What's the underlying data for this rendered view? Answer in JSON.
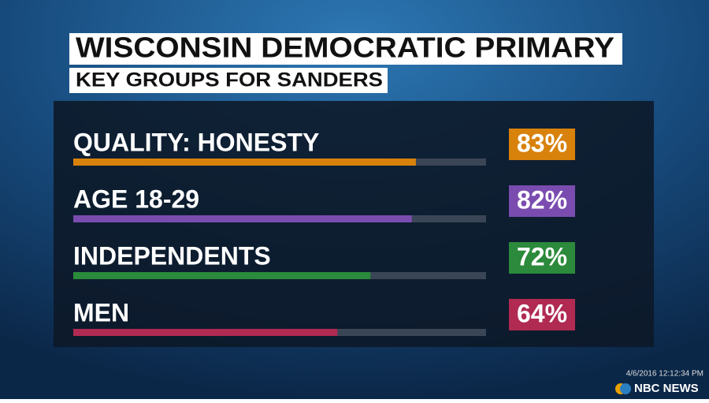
{
  "chart_data": {
    "type": "hbar",
    "title": "WISCONSIN DEMOCRATIC PRIMARY",
    "subtitle": "KEY GROUPS FOR SANDERS",
    "categories": [
      "QUALITY: HONESTY",
      "AGE 18-29",
      "INDEPENDENTS",
      "MEN"
    ],
    "values": [
      83,
      82,
      72,
      64
    ],
    "value_labels": [
      "83%",
      "82%",
      "72%",
      "64%"
    ],
    "colors": [
      "#d8820c",
      "#7a4cb0",
      "#2b8a3b",
      "#b02a52"
    ],
    "xlim": [
      0,
      100
    ]
  },
  "footer": {
    "timestamp": "4/6/2016 12:12:34 PM",
    "network": "NBC NEWS"
  }
}
